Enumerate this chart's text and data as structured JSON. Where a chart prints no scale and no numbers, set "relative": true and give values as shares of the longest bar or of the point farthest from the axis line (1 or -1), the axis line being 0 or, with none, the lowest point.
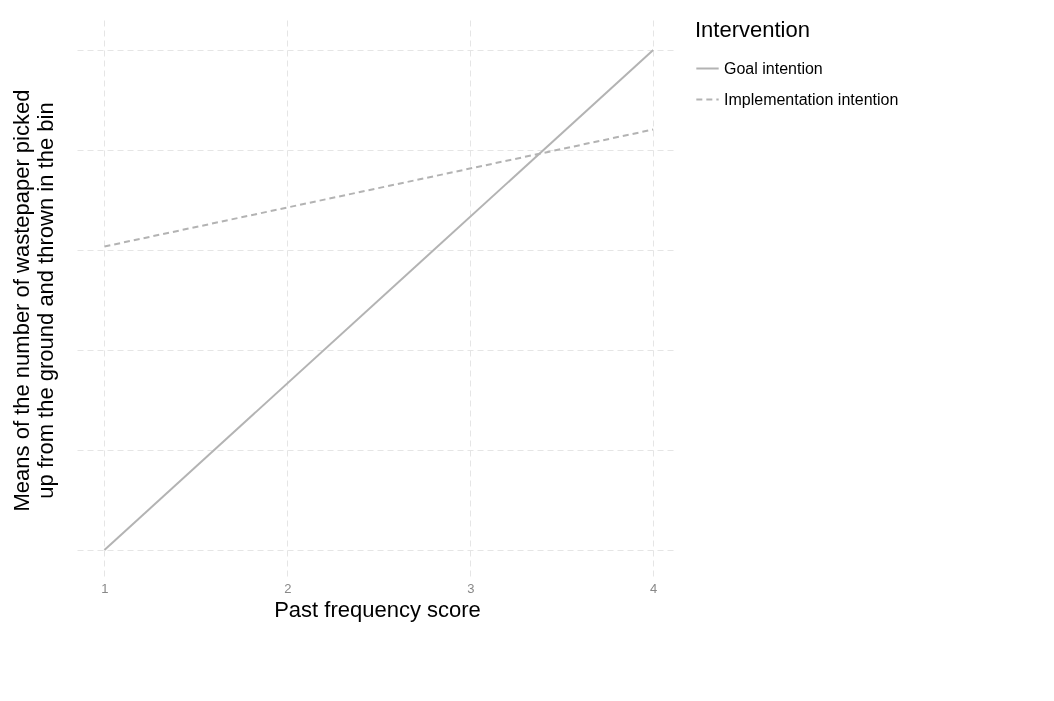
{
  "chart_data": {
    "type": "line",
    "relative": true,
    "xlabel": "Past frequency score",
    "ylabel": "Means of the number of wastepaper picked up from the ground and thrown in the bin",
    "legend_title": "Intervention",
    "x": [
      1,
      4
    ],
    "xlim": [
      0.85,
      4.13
    ],
    "xticks": [
      1,
      2,
      3,
      4
    ],
    "grid": true,
    "legend": "right",
    "marker": "none",
    "series": [
      {
        "name": "Goal intention",
        "color": "#b3b3b3",
        "line_style": "solid",
        "values": [
          0,
          1
        ]
      },
      {
        "name": "Implementation intention",
        "color": "#b3b3b3",
        "line_style": "dashed",
        "values": [
          0.607,
          0.841
        ]
      }
    ]
  }
}
